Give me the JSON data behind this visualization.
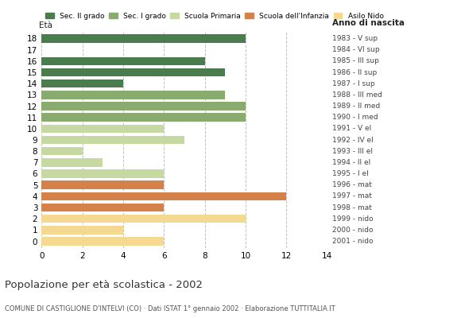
{
  "ages": [
    18,
    17,
    16,
    15,
    14,
    13,
    12,
    11,
    10,
    9,
    8,
    7,
    6,
    5,
    4,
    3,
    2,
    1,
    0
  ],
  "values": [
    10,
    0,
    8,
    9,
    4,
    9,
    10,
    10,
    6,
    7,
    2,
    3,
    6,
    6,
    12,
    6,
    10,
    4,
    6
  ],
  "right_labels": [
    "1983 - V sup",
    "1984 - VI sup",
    "1985 - III sup",
    "1986 - II sup",
    "1987 - I sup",
    "1988 - III med",
    "1989 - II med",
    "1990 - I med",
    "1991 - V el",
    "1992 - IV el",
    "1993 - III el",
    "1994 - II el",
    "1995 - I el",
    "1996 - mat",
    "1997 - mat",
    "1998 - mat",
    "1999 - nido",
    "2000 - nido",
    "2001 - nido"
  ],
  "categories": {
    "Sec. II grado": {
      "ages": [
        18,
        17,
        16,
        15,
        14
      ],
      "color": "#4a7c4e"
    },
    "Sec. I grado": {
      "ages": [
        13,
        12,
        11
      ],
      "color": "#8aab6f"
    },
    "Scuola Primaria": {
      "ages": [
        10,
        9,
        8,
        7,
        6
      ],
      "color": "#c5d9a0"
    },
    "Scuola dell'Infanzia": {
      "ages": [
        5,
        4,
        3
      ],
      "color": "#d4814a"
    },
    "Asilo Nido": {
      "ages": [
        2,
        1,
        0
      ],
      "color": "#f5d990"
    }
  },
  "legend_labels": [
    "Sec. II grado",
    "Sec. I grado",
    "Scuola Primaria",
    "Scuola dell'Infanzia",
    "Asilo Nido"
  ],
  "legend_colors": [
    "#4a7c4e",
    "#8aab6f",
    "#c5d9a0",
    "#d4814a",
    "#f5d990"
  ],
  "title": "Popolazione per età scolastica - 2002",
  "subtitle": "COMUNE DI CASTIGLIONE D'INTELVI (CO) · Dati ISTAT 1° gennaio 2002 · Elaborazione TUTTITALIA.IT",
  "label_eta": "Età",
  "label_anno": "Anno di nascita",
  "xlim": [
    0,
    14
  ],
  "xticks": [
    0,
    2,
    4,
    6,
    8,
    10,
    12,
    14
  ],
  "background_color": "#ffffff",
  "grid_color": "#bbbbbb",
  "bar_height": 0.75,
  "figsize": [
    5.8,
    4.0
  ],
  "dpi": 100
}
